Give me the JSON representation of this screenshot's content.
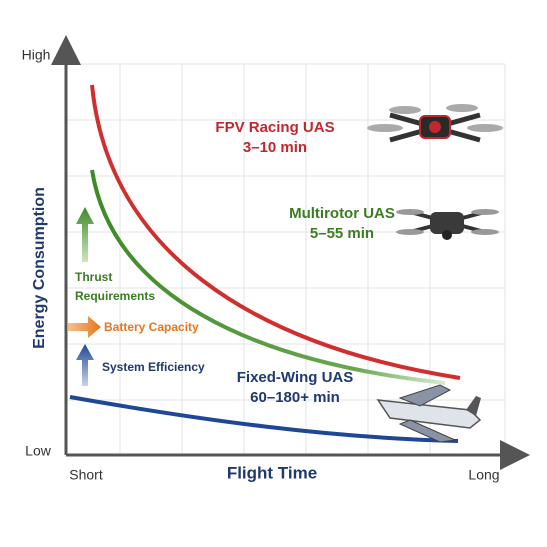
{
  "axes": {
    "y_label": "Energy Consumption",
    "y_high": "High",
    "y_low": "Low",
    "x_label": "Flight Time",
    "x_start": "Short",
    "x_end": "Long"
  },
  "curves": [
    {
      "name": "FPV Racing UAS",
      "duration": "3–10 min"
    },
    {
      "name": "Multirotor UAS",
      "duration": "5–55 min"
    },
    {
      "name": "Fixed-Wing UAS",
      "duration": "60–180+ min"
    }
  ],
  "factors": [
    {
      "lines": [
        "Thrust",
        "Requirements"
      ]
    },
    {
      "lines": [
        "Battery Capacity"
      ]
    },
    {
      "lines": [
        "System Efficiency"
      ]
    }
  ]
}
